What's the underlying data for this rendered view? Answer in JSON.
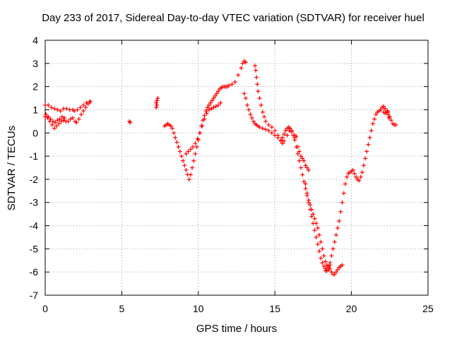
{
  "chart_data": {
    "type": "scatter",
    "title": "Day 233 of 2017, Sidereal Day-to-day VTEC variation (SDTVAR) for receiver huel",
    "xlabel": "GPS time / hours",
    "ylabel": "SDTVAR / TECUs",
    "xlim": [
      0,
      25
    ],
    "ylim": [
      -7,
      4
    ],
    "x_ticks": [
      0,
      5,
      10,
      15,
      20,
      25
    ],
    "y_ticks": [
      -7,
      -6,
      -5,
      -4,
      -3,
      -2,
      -1,
      0,
      1,
      2,
      3,
      4
    ],
    "grid": true,
    "legend": "none",
    "marker": "+",
    "color": "#ff0000",
    "series": [
      {
        "points": [
          [
            0.0,
            1.2
          ],
          [
            0.2,
            1.2
          ],
          [
            0.4,
            1.1
          ],
          [
            0.6,
            1.05
          ],
          [
            0.8,
            1.0
          ],
          [
            1.0,
            0.95
          ],
          [
            1.2,
            1.05
          ],
          [
            1.4,
            1.05
          ],
          [
            1.6,
            1.0
          ],
          [
            1.8,
            1.0
          ],
          [
            1.9,
            0.95
          ],
          [
            2.1,
            1.0
          ],
          [
            2.3,
            1.1
          ],
          [
            2.5,
            1.2
          ],
          [
            2.7,
            1.3
          ],
          [
            2.9,
            1.35
          ],
          [
            0.0,
            0.7
          ],
          [
            0.15,
            0.65
          ],
          [
            0.3,
            0.5
          ],
          [
            0.45,
            0.35
          ],
          [
            0.6,
            0.2
          ],
          [
            0.75,
            0.3
          ],
          [
            0.9,
            0.4
          ],
          [
            1.05,
            0.5
          ],
          [
            1.2,
            0.55
          ],
          [
            1.35,
            0.5
          ],
          [
            1.5,
            0.5
          ],
          [
            1.65,
            0.6
          ],
          [
            1.8,
            0.65
          ],
          [
            1.95,
            0.5
          ],
          [
            2.05,
            0.45
          ],
          [
            2.2,
            0.6
          ],
          [
            2.35,
            0.8
          ],
          [
            2.5,
            0.95
          ],
          [
            2.65,
            1.1
          ],
          [
            2.8,
            1.25
          ],
          [
            2.95,
            1.35
          ],
          [
            0.05,
            0.8
          ],
          [
            0.2,
            0.7
          ],
          [
            0.35,
            0.6
          ],
          [
            0.5,
            0.5
          ],
          [
            0.65,
            0.45
          ],
          [
            0.8,
            0.55
          ],
          [
            0.95,
            0.6
          ],
          [
            1.1,
            0.7
          ],
          [
            1.25,
            0.65
          ],
          [
            5.5,
            0.5
          ],
          [
            5.55,
            0.45
          ],
          [
            7.25,
            1.3
          ],
          [
            7.3,
            1.4
          ],
          [
            7.35,
            1.5
          ],
          [
            7.3,
            1.2
          ],
          [
            7.25,
            1.1
          ],
          [
            7.8,
            0.3
          ],
          [
            7.9,
            0.35
          ],
          [
            8.0,
            0.4
          ],
          [
            8.1,
            0.35
          ],
          [
            8.2,
            0.3
          ],
          [
            8.3,
            0.2
          ],
          [
            8.4,
            0.0
          ],
          [
            8.5,
            -0.2
          ],
          [
            8.6,
            -0.4
          ],
          [
            8.7,
            -0.6
          ],
          [
            8.8,
            -0.8
          ],
          [
            8.9,
            -1.0
          ],
          [
            9.0,
            -1.2
          ],
          [
            9.1,
            -1.4
          ],
          [
            9.2,
            -1.6
          ],
          [
            9.3,
            -1.8
          ],
          [
            9.4,
            -2.0
          ],
          [
            9.5,
            -1.8
          ],
          [
            9.6,
            -1.5
          ],
          [
            9.7,
            -1.2
          ],
          [
            9.8,
            -0.9
          ],
          [
            9.9,
            -0.6
          ],
          [
            10.0,
            -0.3
          ],
          [
            10.1,
            0.0
          ],
          [
            10.2,
            0.3
          ],
          [
            10.3,
            0.55
          ],
          [
            10.4,
            0.75
          ],
          [
            10.5,
            0.95
          ],
          [
            10.6,
            1.1
          ],
          [
            10.7,
            1.2
          ],
          [
            10.8,
            1.3
          ],
          [
            10.9,
            1.4
          ],
          [
            11.0,
            1.5
          ],
          [
            11.1,
            1.6
          ],
          [
            11.2,
            1.7
          ],
          [
            11.3,
            1.8
          ],
          [
            11.4,
            1.9
          ],
          [
            11.5,
            1.95
          ],
          [
            11.6,
            2.0
          ],
          [
            11.7,
            2.0
          ],
          [
            11.8,
            2.0
          ],
          [
            11.9,
            2.0
          ],
          [
            12.0,
            2.05
          ],
          [
            12.2,
            2.1
          ],
          [
            12.4,
            2.2
          ],
          [
            12.6,
            2.5
          ],
          [
            12.8,
            2.8
          ],
          [
            12.9,
            3.0
          ],
          [
            13.0,
            3.1
          ],
          [
            13.1,
            3.05
          ],
          [
            9.2,
            -0.9
          ],
          [
            9.35,
            -0.8
          ],
          [
            9.5,
            -0.7
          ],
          [
            9.65,
            -0.6
          ],
          [
            9.8,
            -0.45
          ],
          [
            9.95,
            -0.25
          ],
          [
            10.1,
            0.0
          ],
          [
            10.25,
            0.3
          ],
          [
            10.4,
            0.6
          ],
          [
            10.55,
            0.85
          ],
          [
            10.7,
            1.0
          ],
          [
            10.85,
            1.05
          ],
          [
            11.0,
            1.1
          ],
          [
            11.15,
            1.15
          ],
          [
            11.3,
            1.2
          ],
          [
            11.45,
            1.3
          ],
          [
            13.0,
            1.7
          ],
          [
            13.1,
            1.5
          ],
          [
            13.2,
            1.2
          ],
          [
            13.3,
            1.0
          ],
          [
            13.4,
            0.8
          ],
          [
            13.5,
            0.65
          ],
          [
            13.6,
            0.5
          ],
          [
            13.7,
            0.4
          ],
          [
            13.8,
            0.35
          ],
          [
            13.9,
            0.3
          ],
          [
            14.0,
            0.25
          ],
          [
            14.2,
            0.2
          ],
          [
            14.4,
            0.15
          ],
          [
            14.6,
            0.1
          ],
          [
            14.8,
            0.0
          ],
          [
            15.0,
            -0.1
          ],
          [
            15.2,
            -0.2
          ],
          [
            15.4,
            -0.3
          ],
          [
            15.5,
            -0.2
          ],
          [
            15.6,
            -0.05
          ],
          [
            15.7,
            0.1
          ],
          [
            15.8,
            0.2
          ],
          [
            15.9,
            0.25
          ],
          [
            16.0,
            0.2
          ],
          [
            16.1,
            0.05
          ],
          [
            16.2,
            -0.1
          ],
          [
            16.3,
            -0.2
          ],
          [
            13.7,
            2.9
          ],
          [
            13.75,
            2.7
          ],
          [
            13.8,
            2.4
          ],
          [
            13.85,
            2.1
          ],
          [
            13.9,
            1.8
          ],
          [
            14.0,
            1.5
          ],
          [
            14.1,
            1.2
          ],
          [
            14.2,
            0.9
          ],
          [
            14.3,
            0.7
          ],
          [
            14.4,
            0.5
          ],
          [
            14.6,
            0.35
          ],
          [
            14.8,
            0.25
          ],
          [
            15.0,
            0.1
          ],
          [
            15.2,
            -0.1
          ],
          [
            15.4,
            -0.35
          ],
          [
            15.5,
            -0.45
          ],
          [
            15.6,
            -0.35
          ],
          [
            15.8,
            -0.1
          ],
          [
            15.95,
            0.1
          ],
          [
            16.1,
            0.1
          ],
          [
            16.3,
            -0.1
          ],
          [
            16.4,
            -0.15
          ],
          [
            16.3,
            -0.3
          ],
          [
            16.4,
            -0.6
          ],
          [
            16.5,
            -0.9
          ],
          [
            16.6,
            -1.2
          ],
          [
            16.7,
            -1.5
          ],
          [
            16.8,
            -1.8
          ],
          [
            16.9,
            -2.1
          ],
          [
            17.0,
            -2.4
          ],
          [
            17.1,
            -2.7
          ],
          [
            17.2,
            -3.0
          ],
          [
            17.3,
            -3.3
          ],
          [
            17.4,
            -3.6
          ],
          [
            17.5,
            -3.9
          ],
          [
            17.6,
            -4.2
          ],
          [
            17.7,
            -4.5
          ],
          [
            17.8,
            -4.8
          ],
          [
            17.9,
            -5.1
          ],
          [
            18.0,
            -5.4
          ],
          [
            18.1,
            -5.6
          ],
          [
            18.2,
            -5.75
          ],
          [
            18.3,
            -5.85
          ],
          [
            18.4,
            -5.9
          ],
          [
            18.5,
            -5.8
          ],
          [
            18.6,
            -5.6
          ],
          [
            18.7,
            -5.3
          ],
          [
            18.8,
            -5.0
          ],
          [
            18.9,
            -4.7
          ],
          [
            19.0,
            -4.4
          ],
          [
            19.1,
            -4.1
          ],
          [
            19.2,
            -3.8
          ],
          [
            19.3,
            -3.4
          ],
          [
            19.4,
            -3.0
          ],
          [
            19.5,
            -2.6
          ],
          [
            19.6,
            -2.2
          ],
          [
            19.7,
            -1.9
          ],
          [
            19.8,
            -1.75
          ],
          [
            19.9,
            -1.7
          ],
          [
            20.0,
            -1.65
          ],
          [
            16.5,
            -0.6
          ],
          [
            16.6,
            -0.8
          ],
          [
            16.7,
            -1.0
          ],
          [
            16.8,
            -1.1
          ],
          [
            16.9,
            -1.2
          ],
          [
            17.0,
            -1.4
          ],
          [
            17.1,
            -1.5
          ],
          [
            17.2,
            -1.6
          ],
          [
            17.0,
            -2.2
          ],
          [
            17.1,
            -2.6
          ],
          [
            17.2,
            -2.9
          ],
          [
            17.3,
            -3.1
          ],
          [
            17.4,
            -3.3
          ],
          [
            17.5,
            -3.5
          ],
          [
            17.6,
            -3.7
          ],
          [
            17.7,
            -3.9
          ],
          [
            17.8,
            -4.1
          ],
          [
            17.9,
            -4.4
          ],
          [
            18.0,
            -4.7
          ],
          [
            18.1,
            -5.0
          ],
          [
            18.2,
            -5.3
          ],
          [
            18.3,
            -5.55
          ],
          [
            18.4,
            -5.7
          ],
          [
            18.5,
            -5.75
          ],
          [
            18.6,
            -5.85
          ],
          [
            18.7,
            -6.0
          ],
          [
            18.8,
            -6.1
          ],
          [
            18.9,
            -6.1
          ],
          [
            19.0,
            -6.0
          ],
          [
            19.1,
            -5.9
          ],
          [
            19.2,
            -5.8
          ],
          [
            19.3,
            -5.75
          ],
          [
            19.4,
            -5.7
          ],
          [
            18.3,
            -5.95
          ],
          [
            18.4,
            -5.95
          ],
          [
            18.5,
            -5.9
          ],
          [
            18.6,
            -5.7
          ],
          [
            20.1,
            -1.6
          ],
          [
            20.2,
            -1.75
          ],
          [
            20.3,
            -1.9
          ],
          [
            20.4,
            -2.0
          ],
          [
            20.5,
            -2.05
          ],
          [
            20.6,
            -1.9
          ],
          [
            20.7,
            -1.7
          ],
          [
            20.8,
            -1.4
          ],
          [
            20.9,
            -1.1
          ],
          [
            21.0,
            -0.8
          ],
          [
            21.1,
            -0.5
          ],
          [
            21.2,
            -0.2
          ],
          [
            21.3,
            0.1
          ],
          [
            21.4,
            0.4
          ],
          [
            21.5,
            0.6
          ],
          [
            21.6,
            0.8
          ],
          [
            21.7,
            0.9
          ],
          [
            21.8,
            0.95
          ],
          [
            21.9,
            1.0
          ],
          [
            22.0,
            1.1
          ],
          [
            22.1,
            1.15
          ],
          [
            22.2,
            1.05
          ],
          [
            22.3,
            0.9
          ],
          [
            22.4,
            0.8
          ],
          [
            22.5,
            0.7
          ],
          [
            22.6,
            0.55
          ],
          [
            22.7,
            0.4
          ],
          [
            22.8,
            0.35
          ],
          [
            22.9,
            0.35
          ],
          [
            22.1,
            0.9
          ],
          [
            22.2,
            0.85
          ],
          [
            22.3,
            0.9
          ],
          [
            22.35,
            0.95
          ],
          [
            22.4,
            0.9
          ],
          [
            22.45,
            0.65
          ]
        ]
      }
    ]
  }
}
